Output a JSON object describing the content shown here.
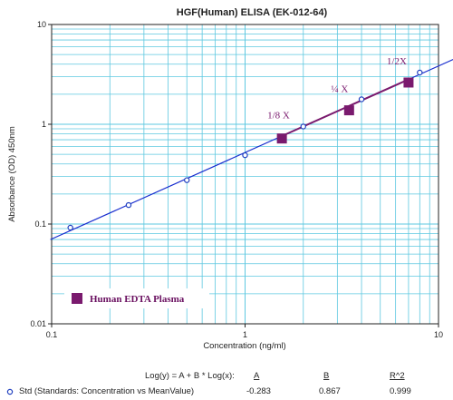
{
  "chart_data": {
    "type": "scatter",
    "title": "HGF(Human) ELISA (EK-012-64)",
    "xlabel": "Concentration (ng/ml)",
    "ylabel": "Absorbance (OD) 450nm",
    "xscale": "log",
    "yscale": "log",
    "xlim": [
      0.1,
      10
    ],
    "ylim": [
      0.01,
      10
    ],
    "x_ticks": [
      {
        "value": 0.1,
        "label": "0.1"
      },
      {
        "value": 1,
        "label": "1"
      },
      {
        "value": 10,
        "label": "10"
      }
    ],
    "y_ticks": [
      {
        "value": 0.01,
        "label": "0.01"
      },
      {
        "value": 0.1,
        "label": "0.1"
      },
      {
        "value": 1,
        "label": "1"
      },
      {
        "value": 10,
        "label": "10"
      }
    ],
    "grid": true,
    "series": [
      {
        "name": "Std (Standards: Concentration vs MeanValue)",
        "kind": "points",
        "marker": "open-circle",
        "color": "#1f3fbf",
        "x": [
          0.125,
          0.25,
          0.5,
          1,
          2,
          4,
          8
        ],
        "y": [
          0.092,
          0.155,
          0.275,
          0.49,
          0.95,
          1.78,
          3.3
        ]
      },
      {
        "name": "Human EDTA Plasma",
        "kind": "points",
        "marker": "filled-square",
        "color": "#7a1a6e",
        "x": [
          1.55,
          3.45,
          7.0
        ],
        "y": [
          0.72,
          1.38,
          2.62
        ],
        "labels": [
          "1/8 X",
          "¼ X",
          "1/2X"
        ]
      }
    ],
    "fit": {
      "equation": "Log(y) = A + B * Log(x):",
      "A": -0.283,
      "B": 0.867,
      "R2": 0.999,
      "line_color": "#1a2fcf",
      "sample_line_color": "#7a1a6e"
    },
    "legend": {
      "placement": "lower-left",
      "items": [
        {
          "label": "Human EDTA Plasma",
          "color": "#7a1a6e"
        }
      ]
    }
  },
  "stats": {
    "equation": "Log(y) = A + B * Log(x):",
    "col_a": "A",
    "col_b": "B",
    "col_r2": "R^2",
    "series_label": "Std (Standards: Concentration vs MeanValue)",
    "a_value": "-0.283",
    "b_value": "0.867",
    "r2_value": "0.999"
  },
  "colors": {
    "grid": "#5ec8e0",
    "axis": "#222222",
    "std_marker": "#1f3fbf",
    "fit_line": "#1a2fcf",
    "sample": "#7a1a6e"
  }
}
